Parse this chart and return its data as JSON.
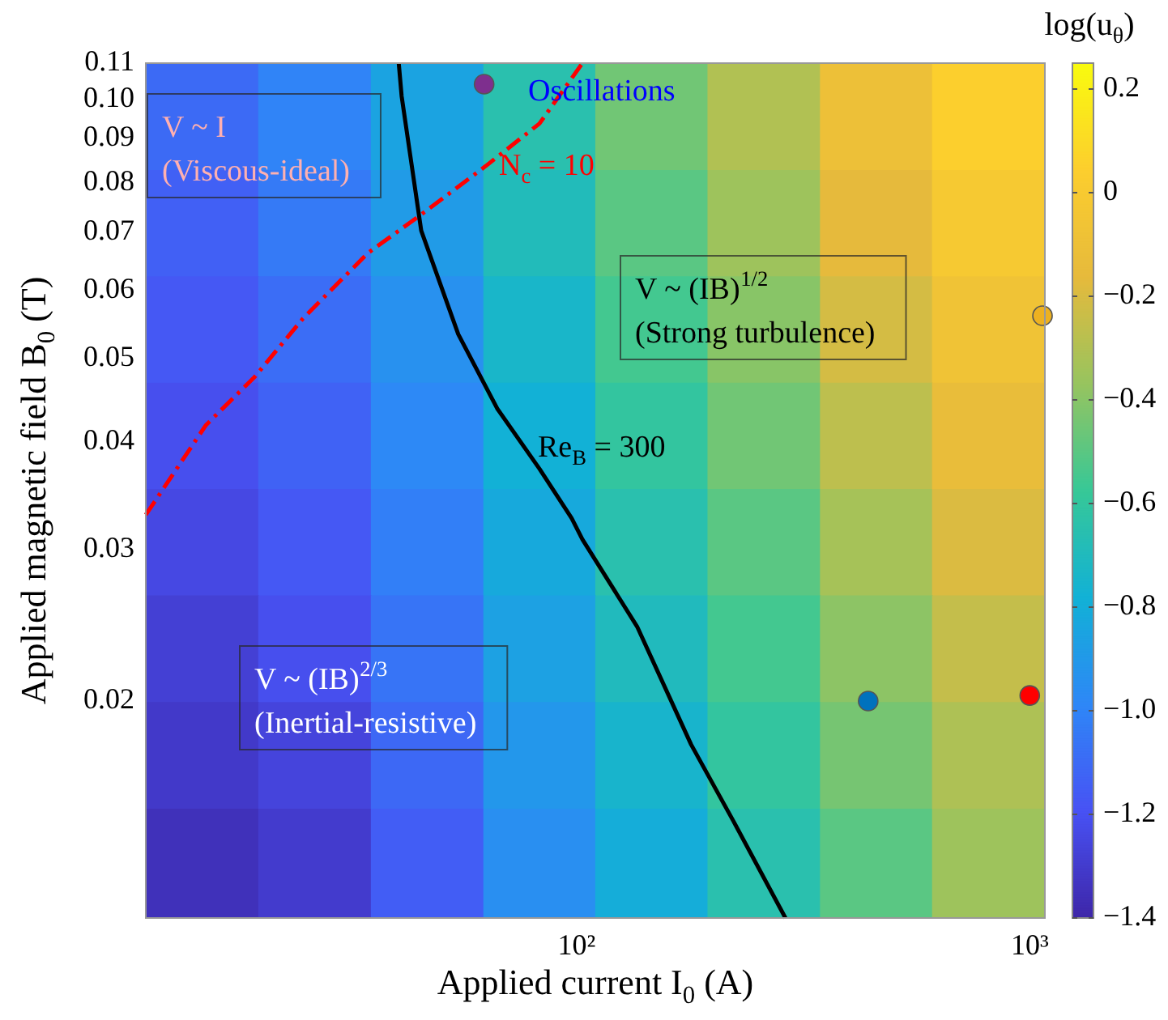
{
  "chart_data": {
    "type": "heatmap",
    "xlabel": "Applied current I$_{0}$ (A)",
    "ylabel": "Applied magnetic field B$_{0}$ (T)",
    "clabel": "log(u$_{θ}$)",
    "log": "xy",
    "xlim": [
      11.2,
      1080
    ],
    "xticks": [
      {
        "value": 100,
        "label": "10²"
      },
      {
        "value": 1000,
        "label": "10³"
      }
    ],
    "ylim": [
      0.0112,
      0.11
    ],
    "yticks": [
      0.02,
      0.03,
      0.04,
      0.05,
      0.06,
      0.07,
      0.08,
      0.09,
      {
        "value": 0.1,
        "label": "0.10"
      },
      0.11
    ],
    "x": [
      14.9,
      26.4,
      46.8,
      82.8,
      146,
      259,
      458,
      809
    ],
    "y": [
      0.0953,
      0.0717,
      0.054,
      0.0406,
      0.0306,
      0.023,
      0.0173,
      0.013
    ],
    "cells": [
      [
        -1.1,
        -1.0,
        -0.85,
        -0.65,
        -0.45,
        -0.3,
        -0.1,
        0.05
      ],
      [
        -1.14,
        -1.04,
        -0.89,
        -0.69,
        -0.5,
        -0.35,
        -0.16,
        -0.01
      ],
      [
        -1.17,
        -1.09,
        -0.94,
        -0.74,
        -0.55,
        -0.4,
        -0.21,
        -0.07
      ],
      [
        -1.21,
        -1.13,
        -0.98,
        -0.78,
        -0.6,
        -0.45,
        -0.27,
        -0.13
      ],
      [
        -1.24,
        -1.17,
        -1.02,
        -0.82,
        -0.65,
        -0.5,
        -0.33,
        -0.19
      ],
      [
        -1.28,
        -1.21,
        -1.06,
        -0.86,
        -0.7,
        -0.55,
        -0.39,
        -0.25
      ],
      [
        -1.31,
        -1.26,
        -1.11,
        -0.91,
        -0.75,
        -0.6,
        -0.44,
        -0.31
      ],
      [
        -1.35,
        -1.3,
        -1.15,
        -0.95,
        -0.8,
        -0.65,
        -0.5,
        -0.35
      ]
    ],
    "clim": [
      -1.4,
      0.25
    ],
    "cticks": [
      {
        "value": -1.4,
        "label": "−1.4"
      },
      {
        "value": -1.2,
        "label": "−1.2"
      },
      {
        "value": -1.0,
        "label": "−1.0"
      },
      {
        "value": -0.8,
        "label": "−0.8"
      },
      {
        "value": -0.6,
        "label": "−0.6"
      },
      {
        "value": -0.4,
        "label": "−0.4"
      },
      {
        "value": -0.2,
        "label": "−0.2"
      },
      0,
      0.2
    ],
    "series": [
      {
        "type": "line",
        "name": "Re$_{B}$ = 300",
        "color": "#000000",
        "line_style": "solid",
        "marker": "none",
        "x": [
          40.5,
          41.1,
          45.4,
          54.8,
          66.8,
          82.8,
          97.5,
          103,
          136,
          179,
          222,
          289
        ],
        "values": [
          0.11,
          0.1007,
          0.0703,
          0.0533,
          0.0437,
          0.0372,
          0.0326,
          0.0308,
          0.0244,
          0.0178,
          0.0145,
          0.0112
        ]
      },
      {
        "type": "line",
        "name": "N$_{c}$ = 10",
        "color": "#ff0000",
        "line_style": "dashed",
        "marker": "none",
        "x": [
          11.2,
          15.2,
          19.5,
          24.9,
          34.6,
          45.4,
          63.1,
          82.8,
          103
        ],
        "values": [
          0.0329,
          0.0418,
          0.0476,
          0.0556,
          0.0662,
          0.0734,
          0.0836,
          0.0936,
          0.11
        ]
      },
      {
        "type": "scatter",
        "color": "#7e2f8e",
        "marker": "circle",
        "x": [
          62.5
        ],
        "values": [
          0.104
        ]
      },
      {
        "type": "scatter",
        "color": "#edb120",
        "marker": "circle",
        "x": [
          1067
        ],
        "values": [
          0.056
        ]
      },
      {
        "type": "scatter",
        "color": "#0072bd",
        "marker": "circle",
        "x": [
          440
        ],
        "values": [
          0.02
        ]
      },
      {
        "type": "scatter",
        "color": "#ff0000",
        "marker": "circle",
        "x": [
          1000
        ],
        "values": [
          0.0203
        ]
      }
    ],
    "annotations": [
      "V ~ I\n(Viscous-ideal)",
      "Oscillations",
      "V ~ (IB)$^{1/2}$\n(Strong turbulence)",
      "V ~ (IB)$^{2/3}$\n(Inertial-resistive)"
    ]
  }
}
